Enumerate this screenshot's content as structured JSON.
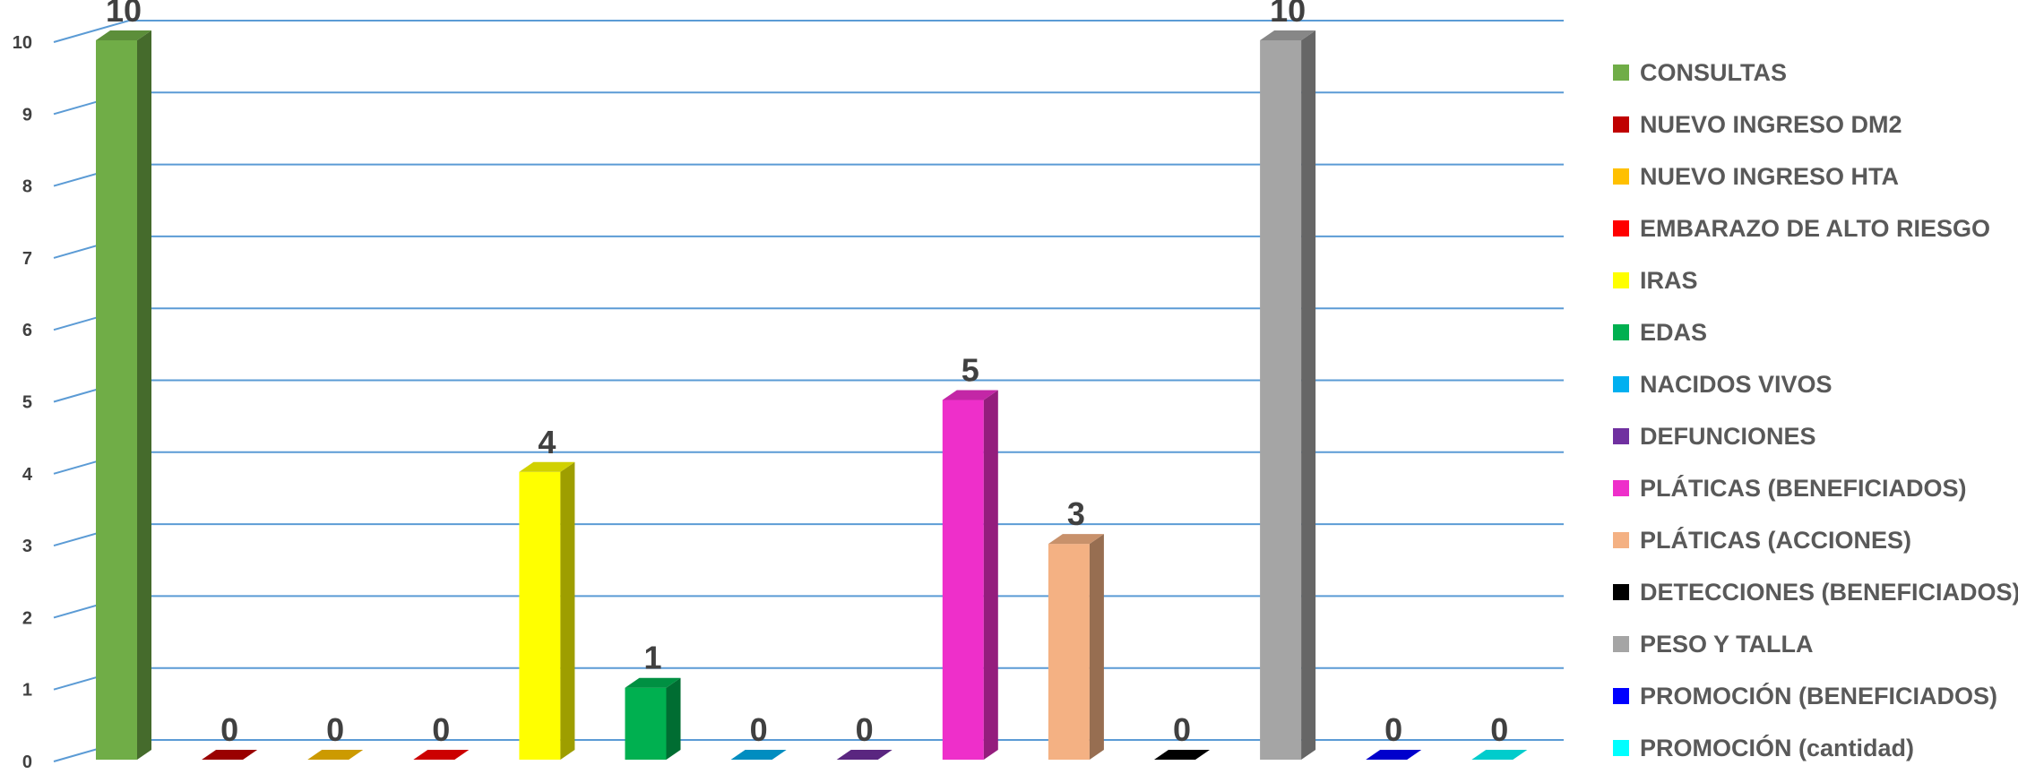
{
  "chart_data": {
    "type": "bar",
    "categories": [
      "CONSULTAS",
      "NUEVO INGRESO DM2",
      "NUEVO INGRESO HTA",
      "EMBARAZO DE ALTO RIESGO",
      "IRAS",
      "EDAS",
      "NACIDOS VIVOS",
      "DEFUNCIONES",
      "PLÁTICAS (BENEFICIADOS)",
      "PLÁTICAS (ACCIONES)",
      "DETECCIONES (BENEFICIADOS)",
      "PESO Y TALLA",
      "PROMOCIÓN (BENEFICIADOS)",
      "PROMOCIÓN (cantidad)"
    ],
    "values": [
      10,
      0,
      0,
      0,
      4,
      1,
      0,
      0,
      5,
      3,
      0,
      10,
      0,
      0
    ],
    "data_labels": [
      "10",
      "0",
      "0",
      "0",
      "4",
      "1",
      "0",
      "0",
      "5",
      "3",
      "0",
      "10",
      "0",
      "0"
    ],
    "colors": [
      "#70AD47",
      "#C00000",
      "#FFC000",
      "#FF0000",
      "#FFFF00",
      "#00B050",
      "#00B0F0",
      "#7030A0",
      "#EE2FCA",
      "#F4B183",
      "#000000",
      "#A5A5A5",
      "#0000FF",
      "#00FFFF"
    ],
    "yticks": [
      "0",
      "1",
      "2",
      "3",
      "4",
      "5",
      "6",
      "7",
      "8",
      "9",
      "10"
    ],
    "ylim": [
      0,
      10
    ],
    "grid": true,
    "gridline_color": "#5B9BD5",
    "legend_position": "right",
    "style": "3d-column"
  }
}
